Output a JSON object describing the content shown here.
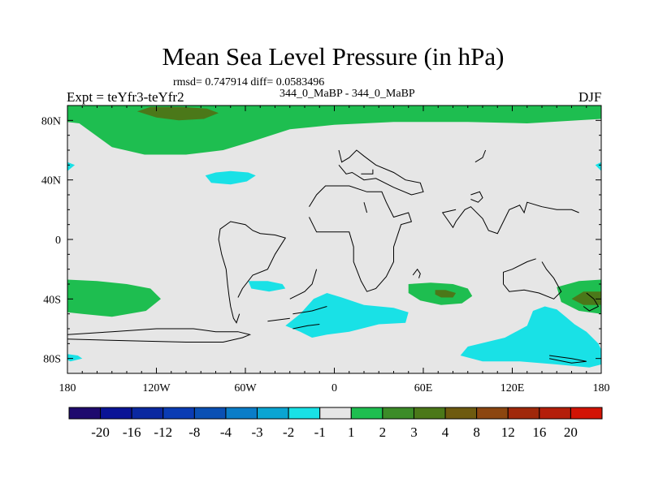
{
  "chart_data": {
    "type": "heatmap",
    "title": "Mean Sea Level Pressure (in hPa)",
    "stats_line": "rmsd= 0.747914 diff= 0.0583496",
    "subtitle": "344_0_MaBP - 344_0_MaBP",
    "left_label": "Expt = teYfr3-teYfr2",
    "right_label": "DJF",
    "xlim": [
      -180,
      180
    ],
    "ylim": [
      -90,
      90
    ],
    "x_ticks": [
      {
        "value": -180,
        "label": "180"
      },
      {
        "value": -120,
        "label": "120W"
      },
      {
        "value": -60,
        "label": "60W"
      },
      {
        "value": 0,
        "label": "0"
      },
      {
        "value": 60,
        "label": "60E"
      },
      {
        "value": 120,
        "label": "120E"
      },
      {
        "value": 180,
        "label": "180"
      }
    ],
    "y_ticks": [
      {
        "value": 80,
        "label": "80N"
      },
      {
        "value": 40,
        "label": "40N"
      },
      {
        "value": 0,
        "label": "0"
      },
      {
        "value": -40,
        "label": "40S"
      },
      {
        "value": -80,
        "label": "80S"
      }
    ],
    "colorbar": {
      "levels": [
        "-20",
        "-16",
        "-12",
        "-8",
        "-4",
        "-3",
        "-2",
        "-1",
        "1",
        "2",
        "3",
        "4",
        "8",
        "12",
        "16",
        "20"
      ],
      "colors": [
        "#1e0a6e",
        "#0a1496",
        "#0a28a0",
        "#0a3cb4",
        "#0a50b4",
        "#0a7dc8",
        "#0aa5d2",
        "#19e1e6",
        "#e6e6e6",
        "#1ebe50",
        "#3c8c28",
        "#4b7819",
        "#6e5a0f",
        "#8c4610",
        "#a0280a",
        "#b41e0a",
        "#d21405"
      ]
    },
    "regions": [
      {
        "value": "1 to 2",
        "points": [
          [
            -180,
            79
          ],
          [
            -172,
            78
          ],
          [
            -150,
            62
          ],
          [
            -128,
            57
          ],
          [
            -100,
            57
          ],
          [
            -75,
            60
          ],
          [
            -55,
            66
          ],
          [
            -30,
            74
          ],
          [
            0,
            77
          ],
          [
            40,
            79
          ],
          [
            90,
            79
          ],
          [
            130,
            78
          ],
          [
            180,
            81
          ],
          [
            180,
            90
          ],
          [
            -180,
            90
          ]
        ]
      },
      {
        "value": "3 to 4",
        "points": [
          [
            -133,
            86
          ],
          [
            -120,
            82
          ],
          [
            -105,
            80
          ],
          [
            -88,
            81
          ],
          [
            -78,
            85
          ],
          [
            -86,
            88
          ],
          [
            -103,
            89
          ],
          [
            -124,
            89
          ]
        ]
      },
      {
        "value": "-2 to -1",
        "points": [
          [
            -87,
            43
          ],
          [
            -80,
            45
          ],
          [
            -70,
            46
          ],
          [
            -58,
            45
          ],
          [
            -53,
            43
          ],
          [
            -59,
            39
          ],
          [
            -70,
            37
          ],
          [
            -83,
            38
          ]
        ]
      },
      {
        "value": "-2 to -1",
        "points": [
          [
            -180,
            52
          ],
          [
            -175,
            50
          ],
          [
            -180,
            46
          ]
        ]
      },
      {
        "value": "-2 to -1",
        "points": [
          [
            180,
            52
          ],
          [
            176,
            50
          ],
          [
            180,
            46
          ]
        ]
      },
      {
        "value": "1 to 2",
        "points": [
          [
            -180,
            -27
          ],
          [
            -160,
            -28
          ],
          [
            -140,
            -30
          ],
          [
            -124,
            -33
          ],
          [
            -117,
            -40
          ],
          [
            -127,
            -48
          ],
          [
            -150,
            -52
          ],
          [
            -170,
            -50
          ],
          [
            -180,
            -49
          ]
        ]
      },
      {
        "value": "-2 to -1",
        "points": [
          [
            -180,
            -77
          ],
          [
            -173,
            -78
          ],
          [
            -170,
            -80
          ],
          [
            -178,
            -82
          ],
          [
            -180,
            -81
          ]
        ]
      },
      {
        "value": "-2 to -1",
        "points": [
          [
            -58,
            -28
          ],
          [
            -45,
            -28
          ],
          [
            -35,
            -30
          ],
          [
            -33,
            -33
          ],
          [
            -44,
            -35
          ],
          [
            -56,
            -33
          ]
        ]
      },
      {
        "value": "-2 to -1",
        "points": [
          [
            -14,
            -40
          ],
          [
            -5,
            -36
          ],
          [
            5,
            -39
          ],
          [
            20,
            -44
          ],
          [
            40,
            -46
          ],
          [
            50,
            -49
          ],
          [
            48,
            -56
          ],
          [
            30,
            -57
          ],
          [
            10,
            -62
          ],
          [
            -5,
            -64
          ],
          [
            -15,
            -66
          ],
          [
            -23,
            -62
          ],
          [
            -33,
            -58
          ],
          [
            -23,
            -50
          ]
        ]
      },
      {
        "value": "1 to 2",
        "points": [
          [
            50,
            -30
          ],
          [
            65,
            -29
          ],
          [
            80,
            -30
          ],
          [
            90,
            -33
          ],
          [
            93,
            -38
          ],
          [
            86,
            -43
          ],
          [
            72,
            -44
          ],
          [
            58,
            -41
          ],
          [
            50,
            -36
          ]
        ]
      },
      {
        "value": "3 to 4",
        "points": [
          [
            68,
            -34
          ],
          [
            75,
            -34
          ],
          [
            82,
            -36
          ],
          [
            80,
            -39
          ],
          [
            72,
            -39
          ],
          [
            68,
            -37
          ]
        ]
      },
      {
        "value": "1 to 2",
        "points": [
          [
            150,
            -32
          ],
          [
            165,
            -28
          ],
          [
            180,
            -27
          ],
          [
            180,
            -50
          ],
          [
            165,
            -48
          ],
          [
            153,
            -42
          ]
        ]
      },
      {
        "value": "3 to 4",
        "points": [
          [
            160,
            -40
          ],
          [
            168,
            -35
          ],
          [
            180,
            -35
          ],
          [
            180,
            -44
          ],
          [
            168,
            -44
          ]
        ]
      },
      {
        "value": "-2 to -1",
        "points": [
          [
            134,
            -48
          ],
          [
            142,
            -45
          ],
          [
            150,
            -47
          ],
          [
            156,
            -52
          ],
          [
            162,
            -57
          ],
          [
            170,
            -62
          ],
          [
            178,
            -70
          ],
          [
            180,
            -74
          ],
          [
            180,
            -84
          ],
          [
            172,
            -86
          ],
          [
            150,
            -84
          ],
          [
            125,
            -82
          ],
          [
            100,
            -82
          ],
          [
            85,
            -78
          ],
          [
            90,
            -72
          ],
          [
            115,
            -66
          ],
          [
            130,
            -58
          ]
        ]
      }
    ],
    "coastlines": [
      [
        [
          -180,
          -67
        ],
        [
          -140,
          -68
        ],
        [
          -100,
          -69
        ],
        [
          -75,
          -69
        ],
        [
          -62,
          -66
        ],
        [
          -57,
          -64
        ],
        [
          -65,
          -62
        ],
        [
          -80,
          -62
        ],
        [
          -95,
          -60
        ],
        [
          -120,
          -60
        ],
        [
          -150,
          -62
        ],
        [
          -180,
          -64
        ]
      ],
      [
        [
          -65,
          -39
        ],
        [
          -62,
          -33
        ],
        [
          -55,
          -24
        ],
        [
          -45,
          -20
        ],
        [
          -40,
          -10
        ],
        [
          -33,
          1
        ],
        [
          -40,
          3
        ],
        [
          -50,
          4
        ],
        [
          -55,
          6
        ],
        [
          -60,
          10
        ],
        [
          -70,
          12
        ],
        [
          -77,
          7
        ],
        [
          -78,
          0
        ],
        [
          -76,
          -10
        ],
        [
          -73,
          -20
        ],
        [
          -72,
          -30
        ],
        [
          -71,
          -38
        ],
        [
          -70,
          -45
        ],
        [
          -68,
          -53
        ],
        [
          -66,
          -56
        ],
        [
          -64,
          -50
        ]
      ],
      [
        [
          -30,
          -40
        ],
        [
          -20,
          -35
        ],
        [
          -15,
          -30
        ],
        [
          -12,
          -20
        ]
      ],
      [
        [
          -28,
          -50
        ],
        [
          -15,
          -48
        ],
        [
          -5,
          -45
        ]
      ],
      [
        [
          -28,
          -60
        ],
        [
          -18,
          -58
        ],
        [
          -10,
          -57
        ]
      ],
      [
        [
          -45,
          -55
        ],
        [
          -30,
          -53
        ]
      ],
      [
        [
          -17,
          15
        ],
        [
          -12,
          5
        ],
        [
          -8,
          5
        ],
        [
          0,
          5
        ],
        [
          10,
          5
        ],
        [
          13,
          -5
        ],
        [
          13,
          -15
        ],
        [
          18,
          -28
        ],
        [
          22,
          -35
        ],
        [
          28,
          -33
        ],
        [
          35,
          -25
        ],
        [
          40,
          -15
        ],
        [
          40,
          -5
        ],
        [
          45,
          10
        ],
        [
          52,
          12
        ],
        [
          50,
          18
        ],
        [
          40,
          15
        ],
        [
          35,
          25
        ],
        [
          32,
          32
        ],
        [
          22,
          32
        ],
        [
          10,
          36
        ],
        [
          0,
          36
        ],
        [
          -6,
          36
        ],
        [
          -12,
          30
        ],
        [
          -17,
          22
        ]
      ],
      [
        [
          3,
          60
        ],
        [
          5,
          52
        ],
        [
          10,
          55
        ],
        [
          15,
          60
        ],
        [
          20,
          56
        ],
        [
          28,
          50
        ],
        [
          40,
          45
        ],
        [
          48,
          40
        ],
        [
          58,
          38
        ],
        [
          60,
          32
        ],
        [
          52,
          30
        ],
        [
          40,
          35
        ],
        [
          28,
          41
        ],
        [
          20,
          40
        ],
        [
          12,
          45
        ],
        [
          8,
          44
        ],
        [
          3,
          50
        ]
      ],
      [
        [
          20,
          25
        ],
        [
          22,
          18
        ]
      ],
      [
        [
          18,
          44
        ],
        [
          26,
          44
        ],
        [
          26,
          47
        ]
      ],
      [
        [
          53,
          -24
        ],
        [
          56,
          -20
        ],
        [
          58,
          -23
        ],
        [
          57,
          -26
        ]
      ],
      [
        [
          102,
          60
        ],
        [
          100,
          55
        ],
        [
          95,
          52
        ]
      ],
      [
        [
          82,
          20
        ],
        [
          73,
          18
        ],
        [
          80,
          8
        ],
        [
          82,
          12
        ],
        [
          88,
          20
        ],
        [
          92,
          22
        ],
        [
          100,
          14
        ],
        [
          104,
          6
        ],
        [
          110,
          4
        ],
        [
          118,
          20
        ],
        [
          125,
          23
        ],
        [
          128,
          18
        ],
        [
          130,
          25
        ],
        [
          140,
          22
        ],
        [
          150,
          20
        ],
        [
          160,
          20
        ],
        [
          165,
          18
        ]
      ],
      [
        [
          92,
          30
        ],
        [
          98,
          32
        ],
        [
          100,
          28
        ],
        [
          97,
          25
        ],
        [
          92,
          27
        ]
      ],
      [
        [
          140,
          -15
        ],
        [
          143,
          -20
        ],
        [
          148,
          -26
        ],
        [
          153,
          -35
        ],
        [
          148,
          -40
        ],
        [
          138,
          -36
        ],
        [
          128,
          -34
        ],
        [
          118,
          -35
        ],
        [
          114,
          -30
        ],
        [
          114,
          -22
        ],
        [
          120,
          -20
        ],
        [
          130,
          -15
        ],
        [
          136,
          -13
        ]
      ],
      [
        [
          170,
          -36
        ],
        [
          175,
          -40
        ],
        [
          178,
          -45
        ],
        [
          172,
          -48
        ],
        [
          168,
          -45
        ]
      ],
      [
        [
          145,
          -78
        ],
        [
          160,
          -80
        ],
        [
          170,
          -82
        ],
        [
          160,
          -83
        ],
        [
          145,
          -80
        ]
      ]
    ]
  }
}
